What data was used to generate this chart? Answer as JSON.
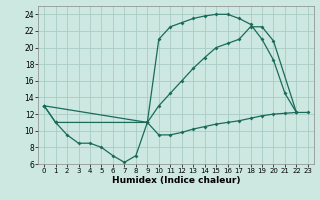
{
  "bg_color": "#cce8e0",
  "grid_color": "#aaccC4",
  "line_color": "#1a6b5a",
  "xlabel": "Humidex (Indice chaleur)",
  "xlim": [
    -0.5,
    23.5
  ],
  "ylim": [
    6,
    25
  ],
  "yticks": [
    6,
    8,
    10,
    12,
    14,
    16,
    18,
    20,
    22,
    24
  ],
  "xticks": [
    0,
    1,
    2,
    3,
    4,
    5,
    6,
    7,
    8,
    9,
    10,
    11,
    12,
    13,
    14,
    15,
    16,
    17,
    18,
    19,
    20,
    21,
    22,
    23
  ],
  "curve_upper_x": [
    0,
    1,
    9,
    10,
    11,
    12,
    13,
    14,
    15,
    16,
    17,
    18,
    19,
    20,
    21,
    22
  ],
  "curve_upper_y": [
    13,
    11,
    11,
    21,
    22.5,
    23,
    23.5,
    23.8,
    24,
    24,
    23.5,
    22.8,
    21,
    18.5,
    14.5,
    12.2
  ],
  "curve_mid_x": [
    0,
    9,
    10,
    11,
    12,
    13,
    14,
    15,
    16,
    17,
    18,
    19,
    20,
    22
  ],
  "curve_mid_y": [
    13,
    11,
    13,
    14.5,
    16,
    17.5,
    18.8,
    20,
    20.5,
    21,
    22.5,
    22.5,
    20.8,
    12.2
  ],
  "curve_lower_x": [
    0,
    1,
    2,
    3,
    4,
    5,
    6,
    7,
    8,
    9,
    10,
    11,
    12,
    13,
    14,
    15,
    16,
    17,
    18,
    19,
    20,
    21,
    22,
    23
  ],
  "curve_lower_y": [
    13,
    11,
    9.5,
    8.5,
    8.5,
    8,
    7,
    6.2,
    7,
    11,
    9.5,
    9.5,
    9.8,
    10.2,
    10.5,
    10.8,
    11,
    11.2,
    11.5,
    11.8,
    12,
    12.1,
    12.2,
    12.2
  ]
}
